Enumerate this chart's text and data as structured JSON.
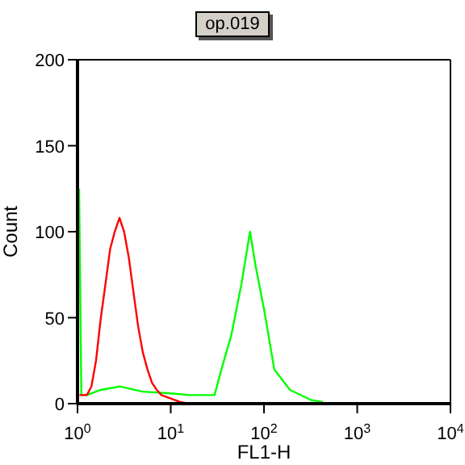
{
  "chart_data": {
    "type": "line",
    "title": "op.019",
    "xlabel": "FL1-H",
    "ylabel": "Count",
    "log": "x",
    "xlim": [
      1,
      10000
    ],
    "xticks": [
      {
        "value": 1,
        "label": "10$^{0}$"
      },
      {
        "value": 10,
        "label": "10$^{1}$"
      },
      {
        "value": 100,
        "label": "10$^{2}$"
      },
      {
        "value": 1000,
        "label": "10$^{3}$"
      },
      {
        "value": 10000,
        "label": "10$^{4}$"
      }
    ],
    "ylim": [
      0,
      200
    ],
    "yticks": [
      0,
      50,
      100,
      150,
      200
    ],
    "grid": false,
    "legend": false,
    "marker": "none",
    "series": [
      {
        "color": "#00ff00",
        "x": [
          1.04,
          1.1,
          1.26,
          1.78,
          2.82,
          5.01,
          10,
          15.8,
          25,
          29.5,
          35,
          44.7,
          57.5,
          70.8,
          81.3,
          100,
          129,
          190,
          324,
          427
        ],
        "values": [
          125,
          5,
          5,
          8,
          10,
          7,
          6,
          5,
          5,
          5,
          20,
          40,
          70,
          100,
          80,
          55,
          20,
          8,
          2,
          1
        ]
      },
      {
        "color": "#ff0000",
        "x": [
          1.05,
          1.26,
          1.41,
          1.58,
          1.78,
          2.0,
          2.24,
          2.51,
          2.82,
          3.16,
          3.55,
          3.98,
          4.47,
          5.01,
          5.62,
          6.31,
          7.08,
          7.94,
          10,
          12.6,
          15.8
        ],
        "values": [
          5,
          5,
          10,
          25,
          50,
          70,
          90,
          100,
          108,
          100,
          85,
          65,
          45,
          30,
          20,
          12,
          8,
          5,
          3,
          1,
          0
        ]
      }
    ]
  }
}
